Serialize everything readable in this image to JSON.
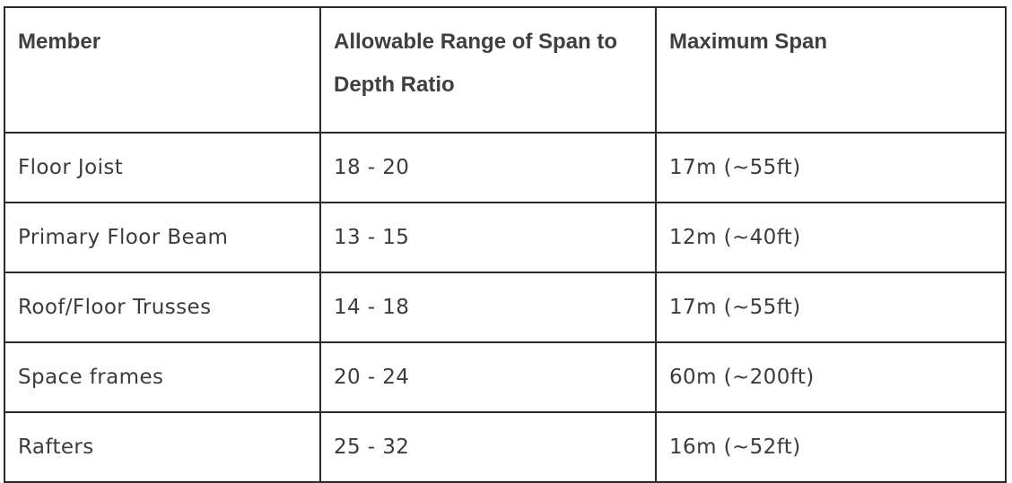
{
  "table": {
    "headers": [
      "Member",
      "Allowable Range of Span to Depth Ratio",
      "Maximum Span"
    ],
    "rows": [
      [
        "Floor Joist",
        "18 - 20",
        "17m (~55ft)"
      ],
      [
        "Primary Floor Beam",
        "13 - 15",
        "12m (~40ft)"
      ],
      [
        "Roof/Floor Trusses",
        "14 - 18",
        "17m (~55ft)"
      ],
      [
        "Space frames",
        "20 - 24",
        "60m (~200ft)"
      ],
      [
        "Rafters",
        "25 - 32",
        "16m (~52ft)"
      ]
    ]
  }
}
